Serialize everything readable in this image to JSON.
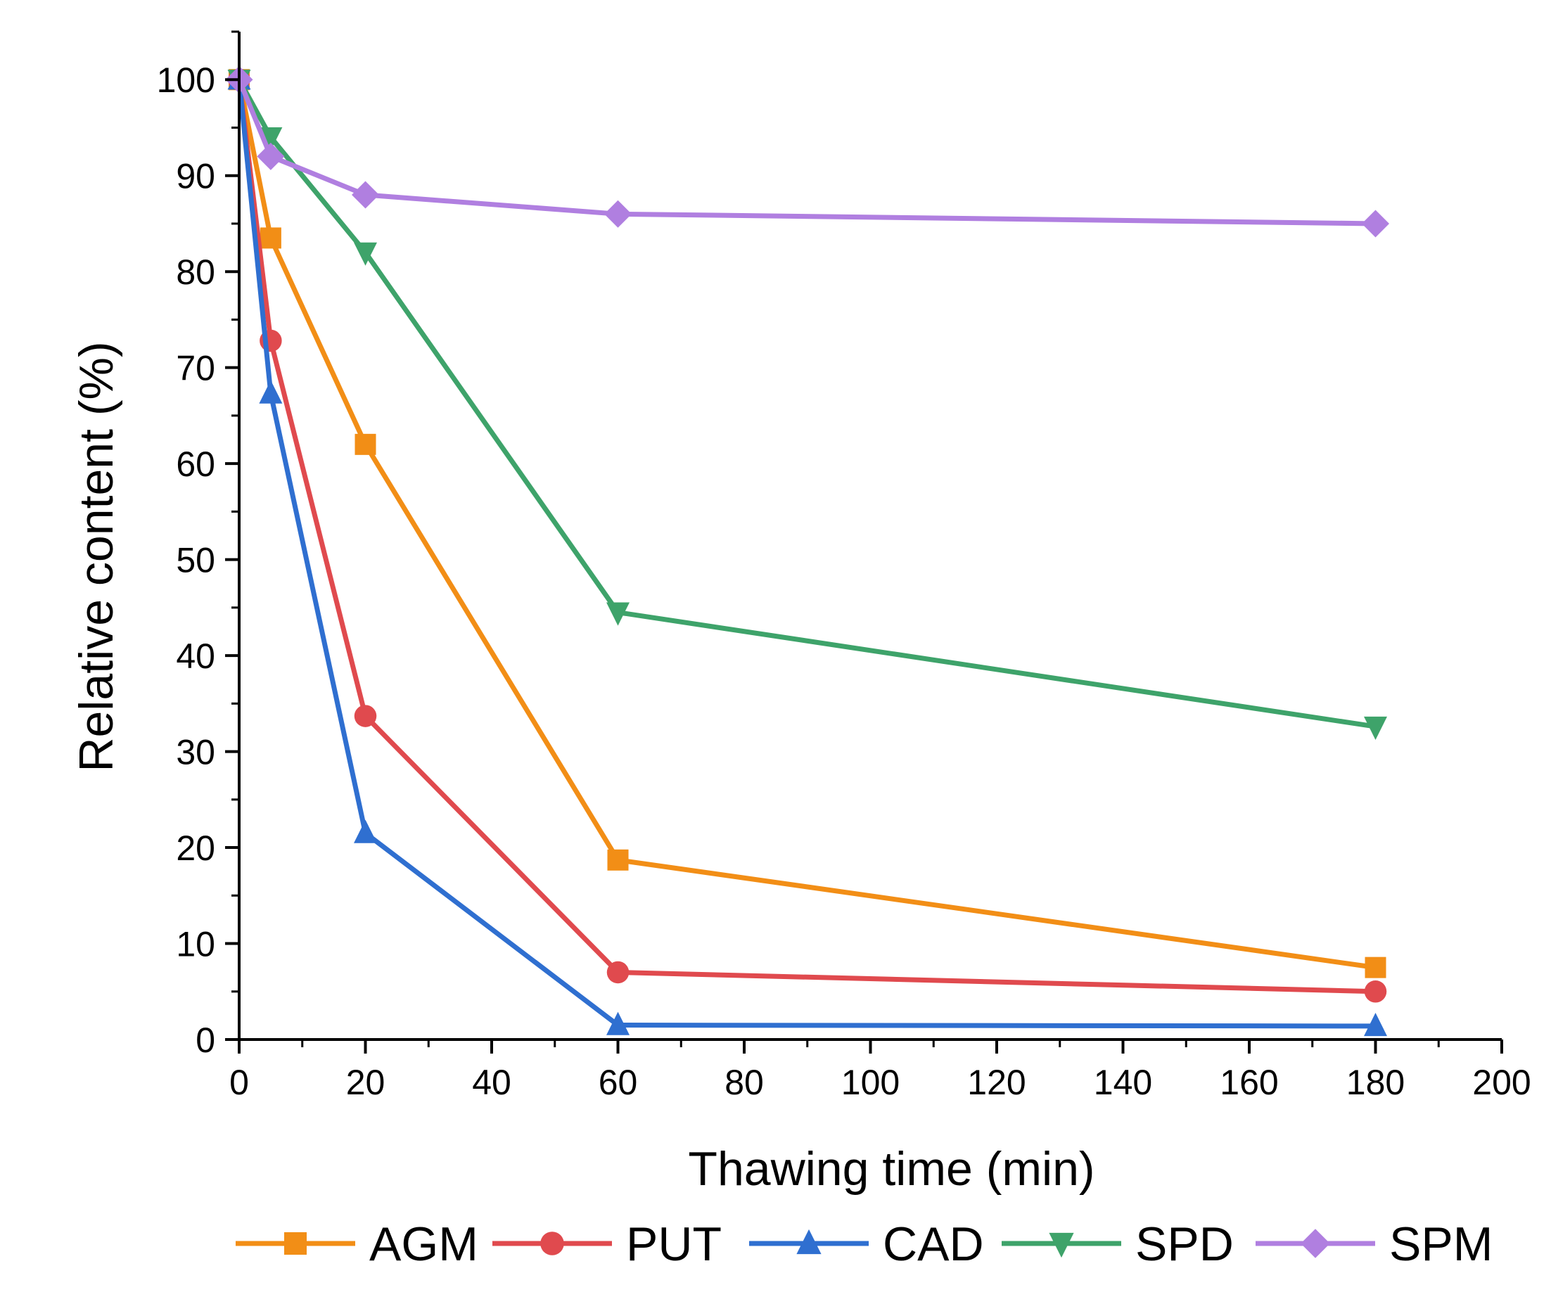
{
  "chart_data": {
    "type": "line",
    "title": "",
    "xlabel": "Thawing time (min)",
    "ylabel": "Relative content (%)",
    "xlim": [
      0,
      200
    ],
    "ylim": [
      0,
      105
    ],
    "x_ticks": [
      0,
      20,
      40,
      60,
      80,
      100,
      120,
      140,
      160,
      180,
      200
    ],
    "y_ticks": [
      0,
      10,
      20,
      30,
      40,
      50,
      60,
      70,
      80,
      90,
      100
    ],
    "x_tick_labels": [
      "0",
      "20",
      "40",
      "60",
      "80",
      "100",
      "120",
      "140",
      "160",
      "180",
      "200"
    ],
    "y_tick_labels": [
      "0",
      "10",
      "20",
      "30",
      "40",
      "50",
      "60",
      "70",
      "80",
      "90",
      "100"
    ],
    "grid": false,
    "legend_position": "bottom",
    "x": [
      0,
      5,
      20,
      60,
      180
    ],
    "series": [
      {
        "name": "AGM",
        "color": "#f28e16",
        "marker": "square",
        "values": [
          100,
          83.5,
          62,
          18.7,
          7.5
        ]
      },
      {
        "name": "PUT",
        "color": "#e04a4e",
        "marker": "circle",
        "values": [
          100,
          72.8,
          33.7,
          7.0,
          5.0
        ]
      },
      {
        "name": "CAD",
        "color": "#2f6fd0",
        "marker": "triangle-up",
        "values": [
          100,
          67.3,
          21.5,
          1.5,
          1.4
        ]
      },
      {
        "name": "SPD",
        "color": "#3ea36a",
        "marker": "triangle-down",
        "values": [
          100,
          94,
          82,
          44.5,
          32.6
        ]
      },
      {
        "name": "SPM",
        "color": "#b07fe0",
        "marker": "diamond",
        "values": [
          100,
          92,
          88,
          86,
          85
        ]
      }
    ]
  }
}
